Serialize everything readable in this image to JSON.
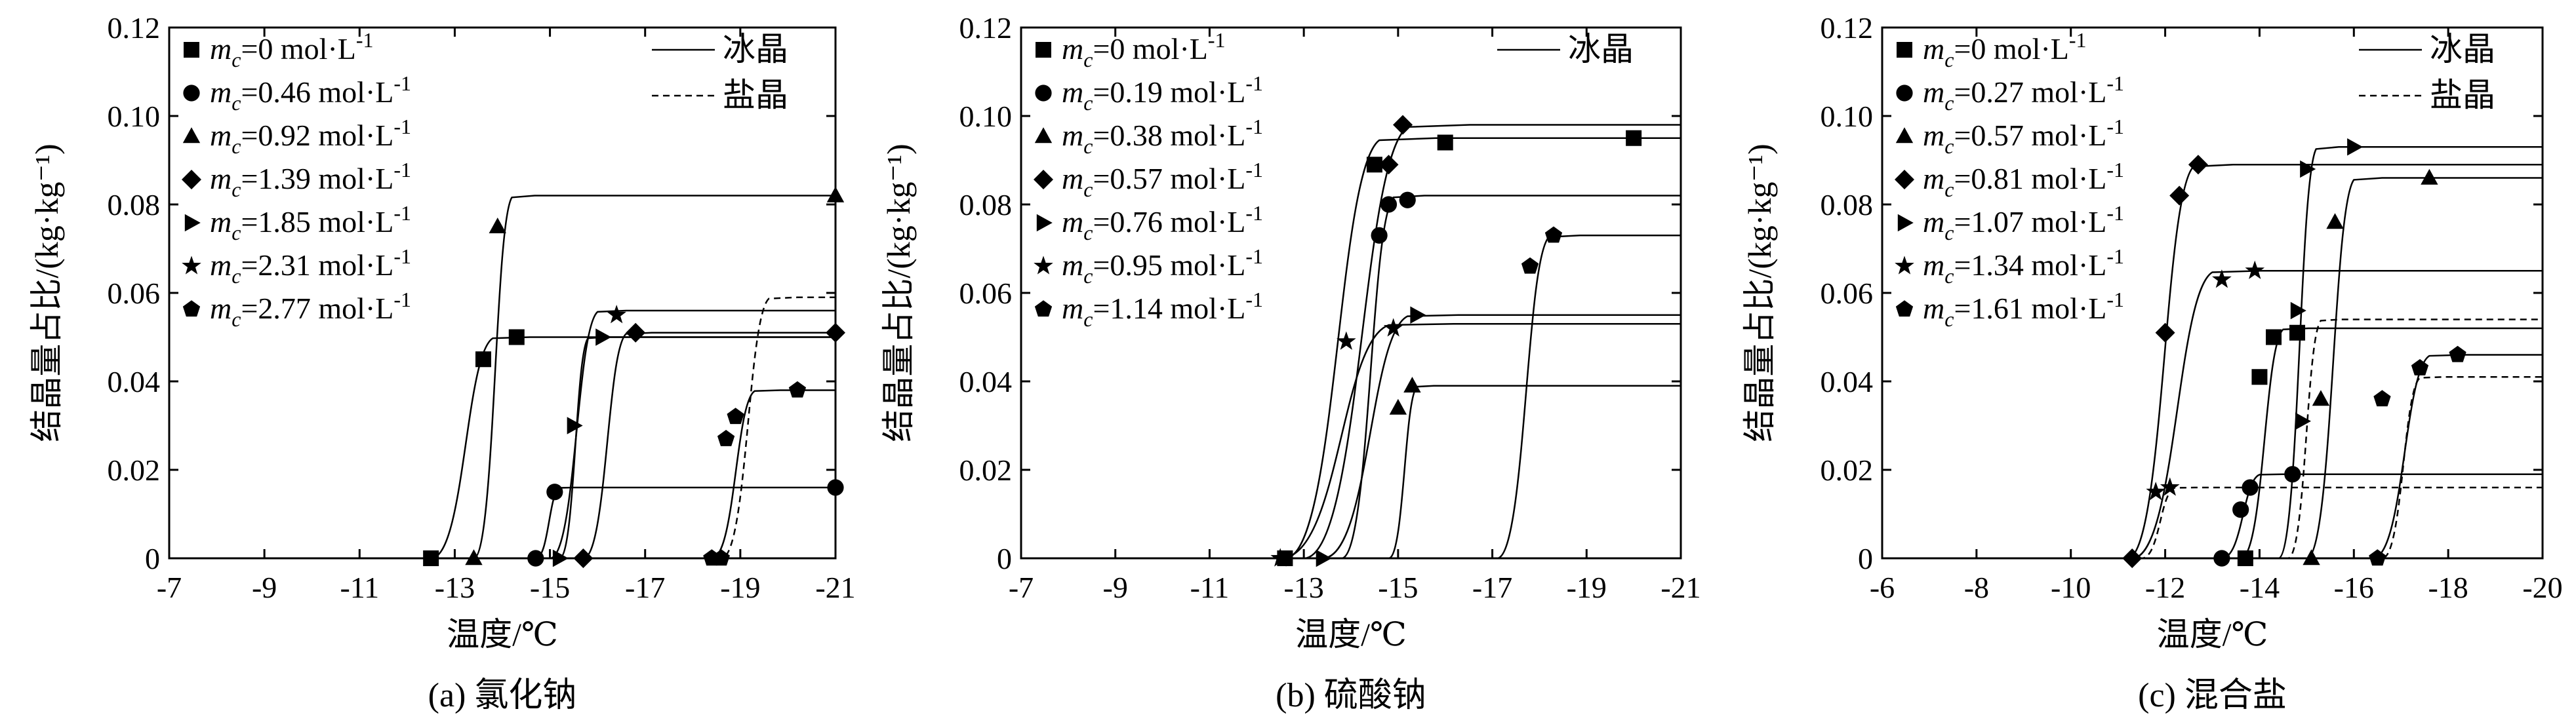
{
  "panels": [
    {
      "caption": "(a) 氯化钠",
      "chart_data": {
        "type": "line",
        "xlabel": "温度/℃",
        "ylabel": "结晶量占比/(kg·kg⁻¹)",
        "xlim": [
          -7,
          -21
        ],
        "ylim": [
          0,
          0.12
        ],
        "x_ticks": [
          "-7",
          "-9",
          "-11",
          "-13",
          "-15",
          "-17",
          "-19",
          "-21"
        ],
        "y_ticks": [
          "0",
          "0.02",
          "0.04",
          "0.06",
          "0.08",
          "0.10",
          "0.12"
        ],
        "legend_curves": [
          {
            "label": "冰晶",
            "style": "solid"
          },
          {
            "label": "盐晶",
            "style": "dashed"
          }
        ],
        "series": [
          {
            "marker": "square",
            "label": "0 mol·L",
            "points": [
              [
                -12.5,
                0.0
              ],
              [
                -13.6,
                0.045
              ],
              [
                -14.3,
                0.05
              ]
            ],
            "ice_curve": {
              "start": -12.5,
              "rise_end": -13.8,
              "plateau": 0.05
            }
          },
          {
            "marker": "circle",
            "label": "0.46 mol·L",
            "points": [
              [
                -14.7,
                0.0
              ],
              [
                -15.1,
                0.015
              ],
              [
                -21.0,
                0.016
              ]
            ],
            "ice_curve": {
              "start": -14.7,
              "rise_end": -15.2,
              "plateau": 0.016
            }
          },
          {
            "marker": "triangle-up",
            "label": "0.92 mol·L",
            "points": [
              [
                -13.4,
                0.0
              ],
              [
                -13.9,
                0.075
              ],
              [
                -21.0,
                0.082
              ]
            ],
            "ice_curve": {
              "start": -13.4,
              "rise_end": -14.2,
              "plateau": 0.082
            }
          },
          {
            "marker": "diamond",
            "label": "1.39 mol·L",
            "points": [
              [
                -15.7,
                0.0
              ],
              [
                -16.8,
                0.051
              ],
              [
                -21.0,
                0.051
              ]
            ],
            "ice_curve": {
              "start": -15.7,
              "rise_end": -16.6,
              "plateau": 0.051
            }
          },
          {
            "marker": "triangle-right",
            "label": "1.85 mol·L",
            "points": [
              [
                -15.2,
                0.0
              ],
              [
                -15.5,
                0.03
              ],
              [
                -16.1,
                0.05
              ]
            ],
            "ice_curve": {
              "start": -15.2,
              "rise_end": -15.8,
              "plateau": 0.05
            }
          },
          {
            "marker": "star",
            "label": "2.31 mol·L",
            "points": [
              [
                -16.4,
                0.055
              ]
            ],
            "ice_curve": {
              "start": -15.0,
              "rise_end": -16.0,
              "plateau": 0.056
            }
          },
          {
            "marker": "pentagon",
            "label": "2.77 mol·L",
            "points": [
              [
                -18.4,
                0.0
              ],
              [
                -18.6,
                0.0
              ],
              [
                -18.7,
                0.027
              ],
              [
                -18.9,
                0.032
              ],
              [
                -20.2,
                0.038
              ]
            ],
            "ice_curve": {
              "start": -18.4,
              "rise_end": -19.3,
              "plateau": 0.038
            }
          }
        ],
        "salt_curves": [
          {
            "start": -18.6,
            "rise_end": -19.6,
            "plateau": 0.059
          }
        ]
      }
    },
    {
      "caption": "(b) 硫酸钠",
      "chart_data": {
        "type": "line",
        "xlabel": "温度/℃",
        "ylabel": "结晶量占比/(kg·kg⁻¹)",
        "xlim": [
          -7,
          -21
        ],
        "ylim": [
          0,
          0.12
        ],
        "x_ticks": [
          "-7",
          "-9",
          "-11",
          "-13",
          "-15",
          "-17",
          "-19",
          "-21"
        ],
        "y_ticks": [
          "0",
          "0.02",
          "0.04",
          "0.06",
          "0.08",
          "0.10",
          "0.12"
        ],
        "legend_curves": [
          {
            "label": "冰晶",
            "style": "solid"
          }
        ],
        "series": [
          {
            "marker": "square",
            "label": "0 mol·L",
            "points": [
              [
                -12.6,
                0.0
              ],
              [
                -14.5,
                0.089
              ],
              [
                -16.0,
                0.094
              ],
              [
                -20.0,
                0.095
              ]
            ],
            "ice_curve": {
              "start": -12.6,
              "rise_end": -14.6,
              "plateau": 0.095
            }
          },
          {
            "marker": "circle",
            "label": "0.19 mol·L",
            "points": [
              [
                -14.6,
                0.073
              ],
              [
                -14.8,
                0.08
              ],
              [
                -15.2,
                0.081
              ]
            ],
            "ice_curve": {
              "start": -13.8,
              "rise_end": -14.9,
              "plateau": 0.082
            }
          },
          {
            "marker": "triangle-up",
            "label": "0.38 mol·L",
            "points": [
              [
                -15.0,
                0.034
              ],
              [
                -15.3,
                0.039
              ]
            ],
            "ice_curve": {
              "start": -14.8,
              "rise_end": -15.4,
              "plateau": 0.039
            }
          },
          {
            "marker": "diamond",
            "label": "0.57 mol·L",
            "points": [
              [
                -14.8,
                0.089
              ],
              [
                -15.1,
                0.098
              ]
            ],
            "ice_curve": {
              "start": -13.0,
              "rise_end": -15.2,
              "plateau": 0.098
            }
          },
          {
            "marker": "triangle-right",
            "label": "0.76 mol·L",
            "points": [
              [
                -13.4,
                0.0
              ],
              [
                -15.4,
                0.055
              ]
            ],
            "ice_curve": {
              "start": -13.4,
              "rise_end": -15.2,
              "plateau": 0.055
            }
          },
          {
            "marker": "star",
            "label": "0.95 mol·L",
            "points": [
              [
                -12.5,
                0.0
              ],
              [
                -13.9,
                0.049
              ],
              [
                -14.9,
                0.052
              ]
            ],
            "ice_curve": {
              "start": -12.5,
              "rise_end": -14.8,
              "plateau": 0.053
            }
          },
          {
            "marker": "pentagon",
            "label": "1.14 mol·L",
            "points": [
              [
                -17.8,
                0.066
              ],
              [
                -18.3,
                0.073
              ]
            ],
            "ice_curve": {
              "start": -17.1,
              "rise_end": -18.2,
              "plateau": 0.073
            }
          }
        ],
        "salt_curves": []
      }
    },
    {
      "caption": "(c) 混合盐",
      "chart_data": {
        "type": "line",
        "xlabel": "温度/℃",
        "ylabel": "结晶量占比/(kg·kg⁻¹)",
        "xlim": [
          -6,
          -20
        ],
        "ylim": [
          0,
          0.12
        ],
        "x_ticks": [
          "-6",
          "-8",
          "-10",
          "-12",
          "-14",
          "-16",
          "-18",
          "-20"
        ],
        "y_ticks": [
          "0",
          "0.02",
          "0.04",
          "0.06",
          "0.08",
          "0.10",
          "0.12"
        ],
        "legend_curves": [
          {
            "label": "冰晶",
            "style": "solid"
          },
          {
            "label": "盐晶",
            "style": "dashed"
          }
        ],
        "series": [
          {
            "marker": "square",
            "label": "0 mol·L",
            "points": [
              [
                -13.7,
                0.0
              ],
              [
                -14.0,
                0.041
              ],
              [
                -14.3,
                0.05
              ],
              [
                -14.8,
                0.051
              ]
            ],
            "ice_curve": {
              "start": -13.6,
              "rise_end": -14.5,
              "plateau": 0.052
            }
          },
          {
            "marker": "circle",
            "label": "0.27 mol·L",
            "points": [
              [
                -13.2,
                0.0
              ],
              [
                -13.6,
                0.011
              ],
              [
                -13.8,
                0.016
              ],
              [
                -14.7,
                0.019
              ]
            ],
            "ice_curve": {
              "start": -13.2,
              "rise_end": -14.0,
              "plateau": 0.019
            }
          },
          {
            "marker": "triangle-up",
            "label": "0.57 mol·L",
            "points": [
              [
                -15.1,
                0.0
              ],
              [
                -15.3,
                0.036
              ],
              [
                -15.6,
                0.076
              ],
              [
                -17.6,
                0.086
              ]
            ],
            "ice_curve": {
              "start": -15.0,
              "rise_end": -16.0,
              "plateau": 0.086
            }
          },
          {
            "marker": "diamond",
            "label": "0.81 mol·L",
            "points": [
              [
                -11.3,
                0.0
              ],
              [
                -12.0,
                0.051
              ],
              [
                -12.3,
                0.082
              ],
              [
                -12.7,
                0.089
              ]
            ],
            "ice_curve": {
              "start": -11.2,
              "rise_end": -12.6,
              "plateau": 0.089
            }
          },
          {
            "marker": "triangle-right",
            "label": "1.07 mol·L",
            "points": [
              [
                -14.9,
                0.031
              ],
              [
                -14.8,
                0.056
              ],
              [
                -15.0,
                0.088
              ],
              [
                -16.0,
                0.093
              ]
            ],
            "ice_curve": {
              "start": -14.4,
              "rise_end": -15.2,
              "plateau": 0.093
            }
          },
          {
            "marker": "star",
            "label": "1.34 mol·L",
            "points": [
              [
                -11.8,
                0.015
              ],
              [
                -12.1,
                0.016
              ],
              [
                -13.2,
                0.063
              ],
              [
                -13.9,
                0.065
              ]
            ],
            "ice_curve": {
              "start": -11.3,
              "rise_end": -13.0,
              "plateau": 0.065
            }
          },
          {
            "marker": "pentagon",
            "label": "1.61 mol·L",
            "points": [
              [
                -16.5,
                0.0
              ],
              [
                -16.6,
                0.036
              ],
              [
                -17.4,
                0.043
              ],
              [
                -18.2,
                0.046
              ]
            ],
            "ice_curve": {
              "start": -16.4,
              "rise_end": -17.6,
              "plateau": 0.046
            }
          }
        ],
        "salt_curves": [
          {
            "start": -11.5,
            "rise_end": -12.2,
            "plateau": 0.016
          },
          {
            "start": -14.6,
            "rise_end": -15.3,
            "plateau": 0.054
          },
          {
            "start": -16.6,
            "rise_end": -17.4,
            "plateau": 0.041
          }
        ]
      }
    }
  ]
}
